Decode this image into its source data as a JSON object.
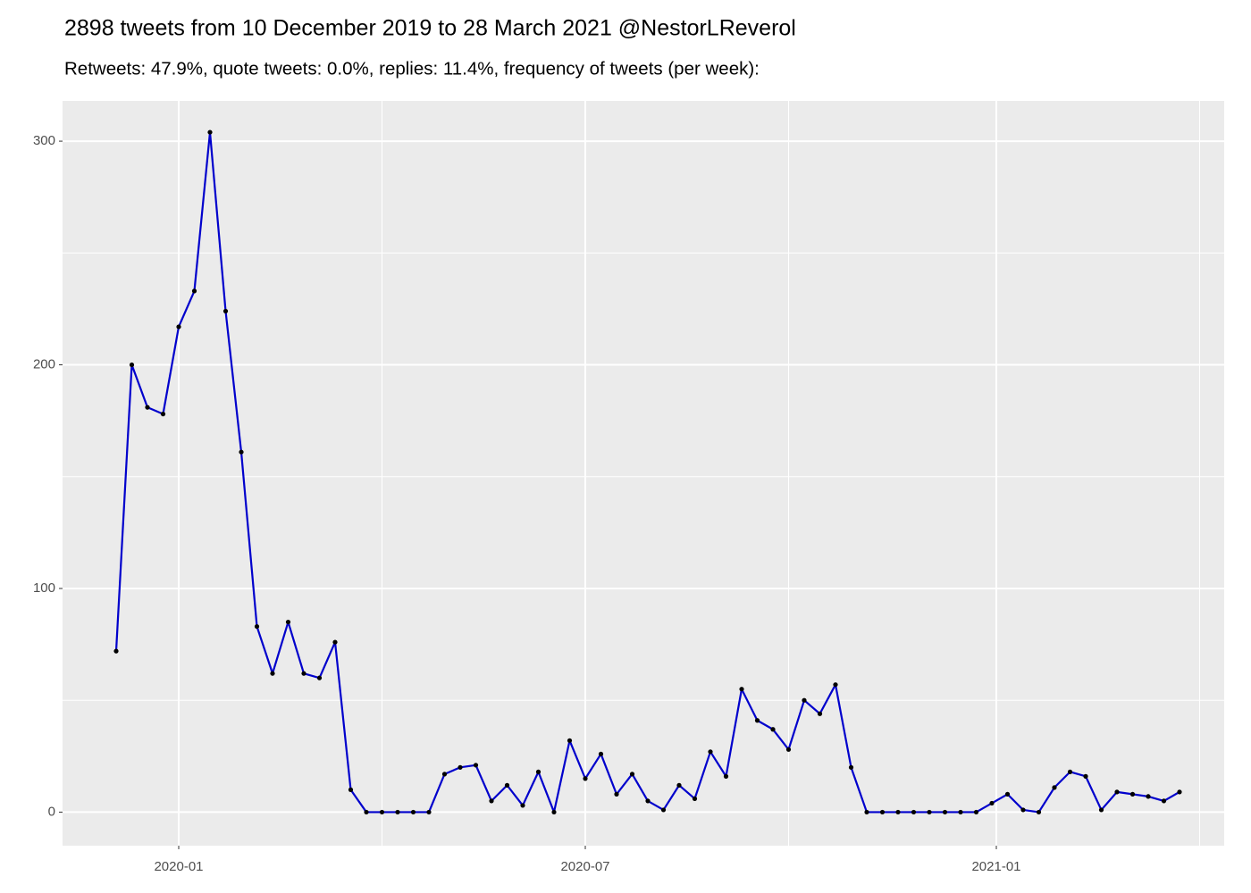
{
  "chart_data": {
    "type": "line",
    "title": "2898 tweets from 10 December 2019 to 28 March 2021 @NestorLReverol",
    "subtitle": "Retweets: 47.9%, quote tweets: 0.0%, replies: 11.4%, frequency of tweets (per week):",
    "x": [
      "2019-12-04",
      "2019-12-11",
      "2019-12-18",
      "2019-12-25",
      "2020-01-01",
      "2020-01-08",
      "2020-01-15",
      "2020-01-22",
      "2020-01-29",
      "2020-02-05",
      "2020-02-12",
      "2020-02-19",
      "2020-02-26",
      "2020-03-04",
      "2020-03-11",
      "2020-03-18",
      "2020-03-25",
      "2020-04-01",
      "2020-04-08",
      "2020-04-15",
      "2020-04-22",
      "2020-04-29",
      "2020-05-06",
      "2020-05-13",
      "2020-05-20",
      "2020-05-27",
      "2020-06-03",
      "2020-06-10",
      "2020-06-17",
      "2020-06-24",
      "2020-07-01",
      "2020-07-08",
      "2020-07-15",
      "2020-07-22",
      "2020-07-29",
      "2020-08-05",
      "2020-08-12",
      "2020-08-19",
      "2020-08-26",
      "2020-09-02",
      "2020-09-09",
      "2020-09-16",
      "2020-09-23",
      "2020-09-30",
      "2020-10-07",
      "2020-10-14",
      "2020-10-21",
      "2020-10-28",
      "2020-11-04",
      "2020-11-11",
      "2020-11-18",
      "2020-11-25",
      "2020-12-02",
      "2020-12-09",
      "2020-12-16",
      "2020-12-23",
      "2020-12-30",
      "2021-01-06",
      "2021-01-13",
      "2021-01-20",
      "2021-01-27",
      "2021-02-03",
      "2021-02-10",
      "2021-02-17",
      "2021-02-24",
      "2021-03-03",
      "2021-03-10",
      "2021-03-17",
      "2021-03-24"
    ],
    "series": [
      {
        "color": "#0000CC",
        "point_color": "#000000",
        "values": [
          72,
          200,
          181,
          178,
          217,
          233,
          304,
          224,
          161,
          83,
          62,
          85,
          62,
          60,
          76,
          10,
          0,
          0,
          0,
          0,
          0,
          17,
          20,
          21,
          5,
          12,
          3,
          18,
          0,
          32,
          15,
          26,
          8,
          17,
          5,
          1,
          12,
          6,
          27,
          16,
          55,
          41,
          37,
          28,
          50,
          44,
          57,
          20,
          0,
          0,
          0,
          0,
          0,
          0,
          0,
          0,
          4,
          8,
          1,
          0,
          11,
          18,
          16,
          1,
          9,
          8,
          7,
          5,
          9
        ]
      }
    ],
    "xlim": [
      "2019-11-10",
      "2021-04-13"
    ],
    "xticks": [
      {
        "value": "2020-01-01",
        "label": "2020-01"
      },
      {
        "value": "2020-07-01",
        "label": "2020-07"
      },
      {
        "value": "2021-01-01",
        "label": "2021-01"
      }
    ],
    "ylim": [
      -15,
      318
    ],
    "yticks": [
      0,
      100,
      200,
      300
    ],
    "grid": true
  }
}
